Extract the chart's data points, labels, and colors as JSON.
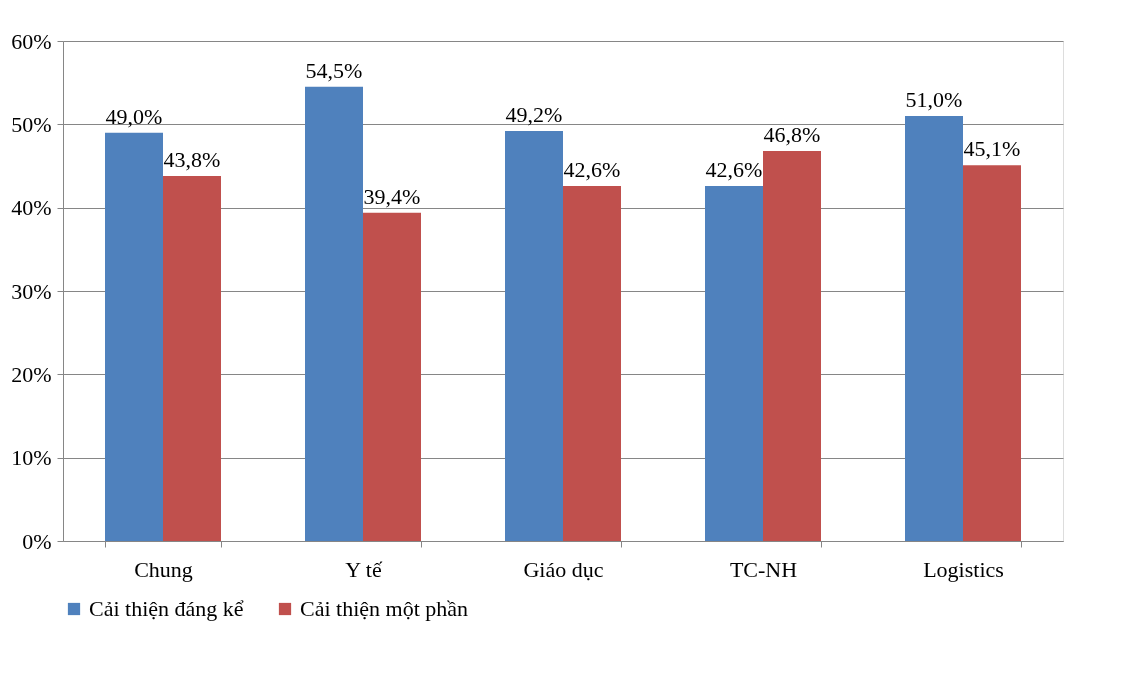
{
  "chart_data": {
    "type": "bar",
    "categories": [
      "Chung",
      "Y tế",
      "Giáo dục",
      "TC-NH",
      "Logistics"
    ],
    "series": [
      {
        "name": "Cải thiện đáng kể",
        "color": "#4f81bd",
        "values": [
          49.0,
          54.5,
          49.2,
          42.6,
          51.0
        ],
        "value_labels": [
          "49,0%",
          "54,5%",
          "49,2%",
          "42,6%",
          "51,0%"
        ]
      },
      {
        "name": "Cải thiện một phần",
        "color": "#c0504d",
        "values": [
          43.8,
          39.4,
          42.6,
          46.8,
          45.1
        ],
        "value_labels": [
          "43,8%",
          "39,4%",
          "42,6%",
          "46,8%",
          "45,1%"
        ]
      }
    ],
    "ylim": [
      0,
      60
    ],
    "yticks": [
      {
        "value": 0,
        "label": "0%"
      },
      {
        "value": 10,
        "label": "10%"
      },
      {
        "value": 20,
        "label": "20%"
      },
      {
        "value": 30,
        "label": "30%"
      },
      {
        "value": 40,
        "label": "40%"
      },
      {
        "value": 50,
        "label": "50%"
      },
      {
        "value": 60,
        "label": "60%"
      }
    ],
    "grid": "y",
    "legend": "bottom"
  }
}
